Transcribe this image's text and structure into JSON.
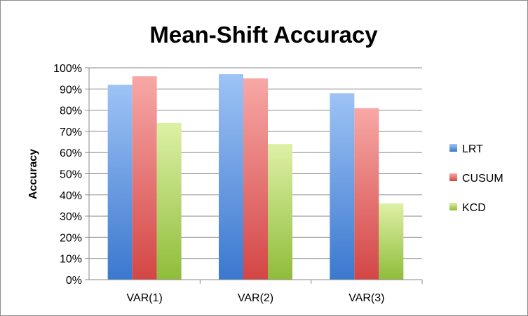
{
  "chart_data": {
    "type": "bar",
    "title": "Mean-Shift Accuracy",
    "xlabel": "",
    "ylabel": "Accuracy",
    "ylim": [
      0,
      100
    ],
    "y_ticks": [
      "0%",
      "10%",
      "20%",
      "30%",
      "40%",
      "50%",
      "60%",
      "70%",
      "80%",
      "90%",
      "100%"
    ],
    "categories": [
      "VAR(1)",
      "VAR(2)",
      "VAR(3)"
    ],
    "series": [
      {
        "name": "LRT",
        "values": [
          92,
          97,
          88
        ],
        "color_top": "#9ec3f5",
        "color_bottom": "#3b78cf"
      },
      {
        "name": "CUSUM",
        "values": [
          96,
          95,
          81
        ],
        "color_top": "#f7a8a6",
        "color_bottom": "#d34645"
      },
      {
        "name": "KCD",
        "values": [
          74,
          64,
          36
        ],
        "color_top": "#def0a6",
        "color_bottom": "#8fbd3a"
      }
    ],
    "grid": true,
    "legend": "right"
  }
}
